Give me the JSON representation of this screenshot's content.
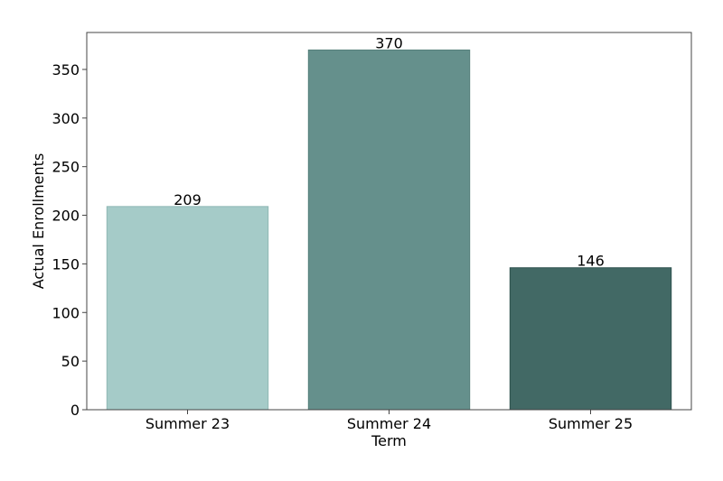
{
  "chart_data": {
    "type": "bar",
    "title": "",
    "xlabel": "Term",
    "ylabel": "Actual Enrollments",
    "categories": [
      "Summer 23",
      "Summer 24",
      "Summer 25"
    ],
    "values": [
      209,
      370,
      146
    ],
    "data_labels": [
      "209",
      "370",
      "146"
    ],
    "bar_colors": [
      "#a5cbc8",
      "#65908c",
      "#426965"
    ],
    "bar_edge_colors": [
      "#8fb8b4",
      "#557f7b",
      "#2f514e"
    ],
    "ylim": [
      0,
      388
    ],
    "yticks": [
      0,
      50,
      100,
      150,
      200,
      250,
      300,
      350
    ],
    "ytick_labels": [
      "0",
      "50",
      "100",
      "150",
      "200",
      "250",
      "300",
      "350"
    ],
    "grid": false,
    "legend": "none"
  }
}
